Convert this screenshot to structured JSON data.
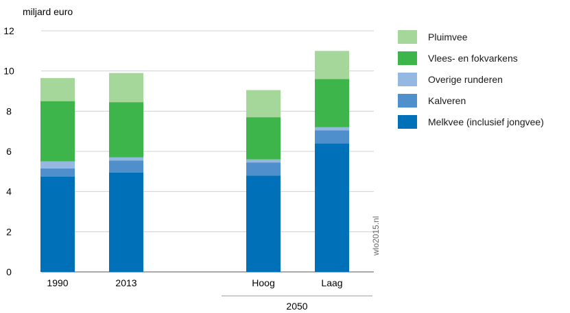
{
  "chart_data": {
    "type": "bar",
    "stacked": true,
    "ylabel": "miljard euro",
    "ylim": [
      0,
      12
    ],
    "yticks": [
      0,
      2,
      4,
      6,
      8,
      10,
      12
    ],
    "grid": true,
    "categories": [
      "1990",
      "2013",
      "Hoog",
      "Laag"
    ],
    "group_label": {
      "text": "2050",
      "categories": [
        "Hoog",
        "Laag"
      ]
    },
    "legend_position": "right",
    "series": [
      {
        "name": "Melkvee (inclusief jongvee)",
        "color": "#0070b8",
        "values": [
          4.75,
          4.95,
          4.8,
          6.4
        ]
      },
      {
        "name": "Kalveren",
        "color": "#4f8fcc",
        "values": [
          0.4,
          0.6,
          0.65,
          0.65
        ]
      },
      {
        "name": "Overige runderen",
        "color": "#94b8e2",
        "values": [
          0.35,
          0.15,
          0.15,
          0.15
        ]
      },
      {
        "name": "Vlees- en fokvarkens",
        "color": "#3db54a",
        "values": [
          3.0,
          2.75,
          2.1,
          2.4
        ]
      },
      {
        "name": "Pluimvee",
        "color": "#a5d69a",
        "values": [
          1.15,
          1.45,
          1.35,
          1.4
        ]
      }
    ],
    "source_note": "wlo2015.nl"
  }
}
